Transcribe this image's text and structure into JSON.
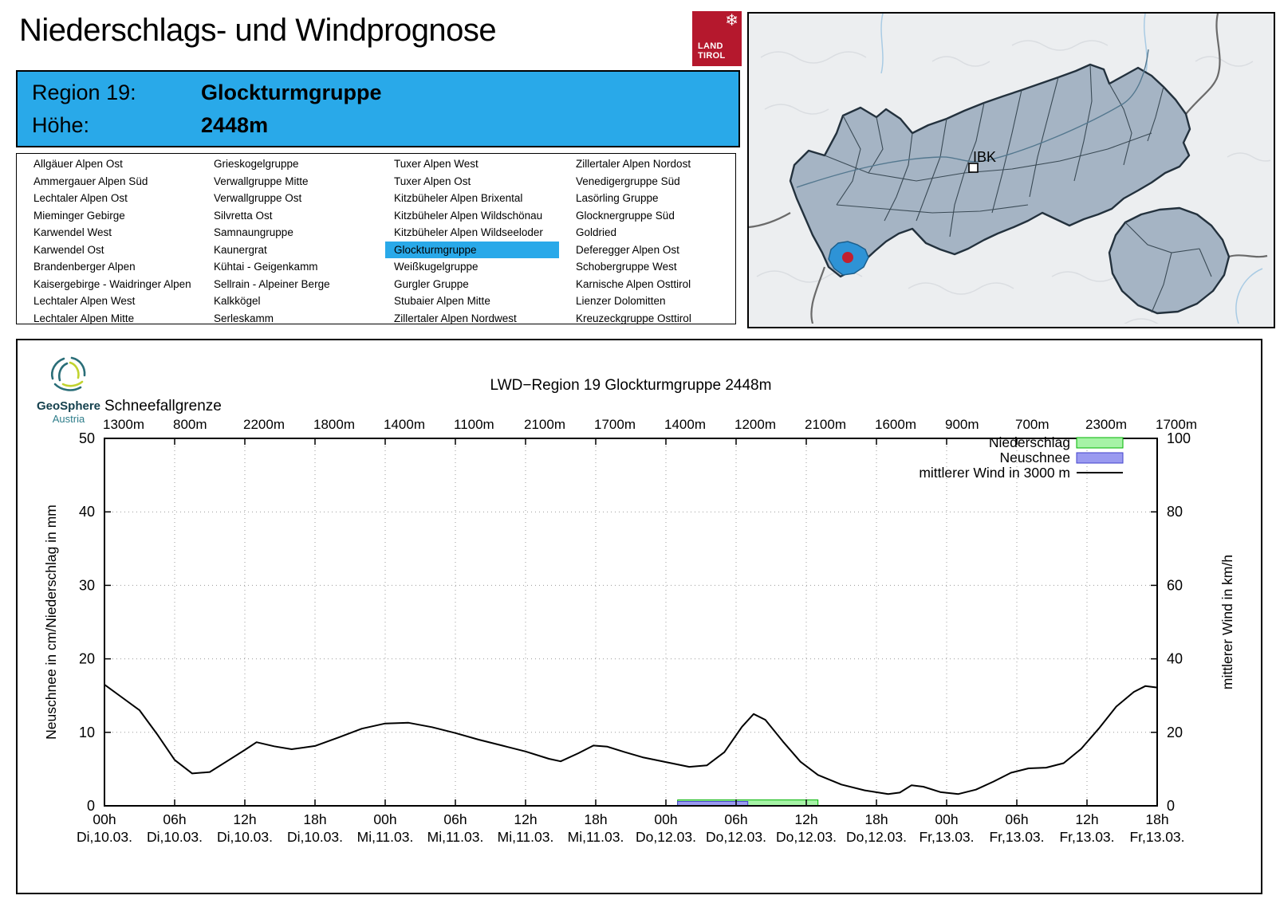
{
  "header": {
    "title": "Niederschlags- und Windprognose",
    "logo_line1": "LAND",
    "logo_line2": "TIROL"
  },
  "region_box": {
    "region_label": "Region 19:",
    "region_value": "Glockturmgruppe",
    "altitude_label": "Höhe:",
    "altitude_value": "2448m"
  },
  "region_list": {
    "selected": "Glockturmgruppe",
    "columns": [
      [
        "Allgäuer Alpen Ost",
        "Ammergauer Alpen Süd",
        "Lechtaler Alpen Ost",
        "Mieminger Gebirge",
        "Karwendel West",
        "Karwendel Ost",
        "Brandenberger Alpen",
        "Kaisergebirge - Waidringer Alpen",
        "Lechtaler Alpen West",
        "Lechtaler Alpen Mitte"
      ],
      [
        "Grieskogelgruppe",
        "Verwallgruppe Mitte",
        "Verwallgruppe Ost",
        "Silvretta Ost",
        "Samnaungruppe",
        "Kaunergrat",
        "Kühtai - Geigenkamm",
        "Sellrain - Alpeiner Berge",
        "Kalkkögel",
        "Serleskamm"
      ],
      [
        "Tuxer Alpen West",
        "Tuxer Alpen Ost",
        "Kitzbüheler Alpen Brixental",
        "Kitzbüheler Alpen Wildschönau",
        "Kitzbüheler Alpen Wildseeloder",
        "Glockturmgruppe",
        "Weißkugelgruppe",
        "Gurgler Gruppe",
        "Stubaier Alpen Mitte",
        "Zillertaler Alpen Nordwest"
      ],
      [
        "Zillertaler Alpen Nordost",
        "Venedigergruppe Süd",
        "Lasörling Gruppe",
        "Glocknergruppe Süd",
        "Goldried",
        "Deferegger Alpen Ost",
        "Schobergruppe West",
        "Karnische Alpen Osttirol",
        "Lienzer Dolomitten",
        "Kreuzeckgruppe Osttirol"
      ]
    ]
  },
  "map": {
    "city_label": "IBK"
  },
  "branding": {
    "geosphere_line1": "GeoSphere",
    "geosphere_line2": "Austria"
  },
  "colors": {
    "accent_blue": "#29A9E9",
    "tirol_red": "#B5182D",
    "map_region_fill": "#A5B4C4",
    "map_highlight": "#2E93D6",
    "marker_red": "#C22030",
    "precip_fill": "#A6F3A6",
    "precip_stroke": "#00B400",
    "snow_fill": "#9A9AF0",
    "snow_stroke": "#4343CC",
    "wind_line": "#000000"
  },
  "chart_data": {
    "type": "line+bar",
    "title": "LWD−Region 19 Glockturmgruppe 2448m",
    "x2_title": "Schneefallgrenze",
    "x2_tick_labels": [
      "1300m",
      "800m",
      "2200m",
      "1800m",
      "1400m",
      "1100m",
      "2100m",
      "1700m",
      "1400m",
      "1200m",
      "2100m",
      "1600m",
      "900m",
      "700m",
      "2300m",
      "1700m"
    ],
    "x_tick_hours": [
      "00h",
      "06h",
      "12h",
      "18h",
      "00h",
      "06h",
      "12h",
      "18h",
      "00h",
      "06h",
      "12h",
      "18h",
      "00h",
      "06h",
      "12h",
      "18h"
    ],
    "x_tick_dates": [
      "Di,10.03.",
      "Di,10.03.",
      "Di,10.03.",
      "Di,10.03.",
      "Mi,11.03.",
      "Mi,11.03.",
      "Mi,11.03.",
      "Mi,11.03.",
      "Do,12.03.",
      "Do,12.03.",
      "Do,12.03.",
      "Do,12.03.",
      "Fr,13.03.",
      "Fr,13.03.",
      "Fr,13.03.",
      "Fr,13.03."
    ],
    "x_range_hours": [
      0,
      90
    ],
    "x_tick_step_hours": 6,
    "ylabel_left": "Neuschnee in cm/Niederschlag in mm",
    "ylabel_right": "mittlerer Wind in km/h",
    "ylim_left": [
      0,
      50
    ],
    "ylim_right": [
      0,
      100
    ],
    "y_ticks_left": [
      0,
      10,
      20,
      30,
      40,
      50
    ],
    "y_ticks_right": [
      0,
      20,
      40,
      60,
      80,
      100
    ],
    "grid": true,
    "legend_position": "top-right",
    "legend": [
      {
        "label": "Niederschlag",
        "type": "box",
        "fill": "#A6F3A6",
        "stroke": "#00B400"
      },
      {
        "label": "Neuschnee",
        "type": "box",
        "fill": "#9A9AF0",
        "stroke": "#4343CC"
      },
      {
        "label": "mittlerer Wind in 3000 m",
        "type": "line",
        "stroke": "#000000"
      }
    ],
    "series": [
      {
        "name": "Niederschlag",
        "axis": "left",
        "unit": "mm",
        "fill": "#A6F3A6",
        "stroke": "#00B400",
        "segments": [
          {
            "from_hour": 49,
            "to_hour": 61,
            "value": 0.8
          }
        ]
      },
      {
        "name": "Neuschnee",
        "axis": "left",
        "unit": "cm",
        "fill": "#9A9AF0",
        "stroke": "#4343CC",
        "segments": [
          {
            "from_hour": 49,
            "to_hour": 55,
            "value": 0.6
          }
        ]
      },
      {
        "name": "mittlerer Wind in 3000 m",
        "axis": "right",
        "unit": "km/h",
        "stroke": "#000000",
        "points": [
          [
            0,
            33
          ],
          [
            1.5,
            29.5
          ],
          [
            3,
            26
          ],
          [
            4.5,
            19.5
          ],
          [
            6,
            12.5
          ],
          [
            7.5,
            8.8
          ],
          [
            9,
            9.2
          ],
          [
            10.5,
            12.2
          ],
          [
            12,
            15.2
          ],
          [
            13,
            17.3
          ],
          [
            14.5,
            16.2
          ],
          [
            16,
            15.4
          ],
          [
            18,
            16.3
          ],
          [
            20,
            18.6
          ],
          [
            22,
            21
          ],
          [
            24,
            22.4
          ],
          [
            26,
            22.6
          ],
          [
            28,
            21.4
          ],
          [
            30,
            19.8
          ],
          [
            32,
            18
          ],
          [
            34,
            16.4
          ],
          [
            36,
            14.8
          ],
          [
            38,
            12.8
          ],
          [
            39,
            12.1
          ],
          [
            40.5,
            14.3
          ],
          [
            41.8,
            16.4
          ],
          [
            43,
            16.1
          ],
          [
            44.5,
            14.6
          ],
          [
            46,
            13.2
          ],
          [
            48,
            11.9
          ],
          [
            50,
            10.6
          ],
          [
            51.5,
            11
          ],
          [
            53,
            14.6
          ],
          [
            54.5,
            21.5
          ],
          [
            55.5,
            25
          ],
          [
            56.5,
            23.4
          ],
          [
            58,
            17.5
          ],
          [
            59.5,
            12
          ],
          [
            61,
            8.4
          ],
          [
            63,
            5.8
          ],
          [
            65,
            4.2
          ],
          [
            67,
            3.2
          ],
          [
            68,
            3.6
          ],
          [
            69,
            5.6
          ],
          [
            70,
            5.2
          ],
          [
            71.5,
            3.7
          ],
          [
            73,
            3.2
          ],
          [
            74.5,
            4.4
          ],
          [
            76,
            6.6
          ],
          [
            77.5,
            9
          ],
          [
            79,
            10.2
          ],
          [
            80.5,
            10.4
          ],
          [
            82,
            11.6
          ],
          [
            83.5,
            15.5
          ],
          [
            85,
            21
          ],
          [
            86.5,
            27
          ],
          [
            88,
            31
          ],
          [
            89,
            32.6
          ],
          [
            90,
            32.2
          ]
        ]
      }
    ]
  }
}
